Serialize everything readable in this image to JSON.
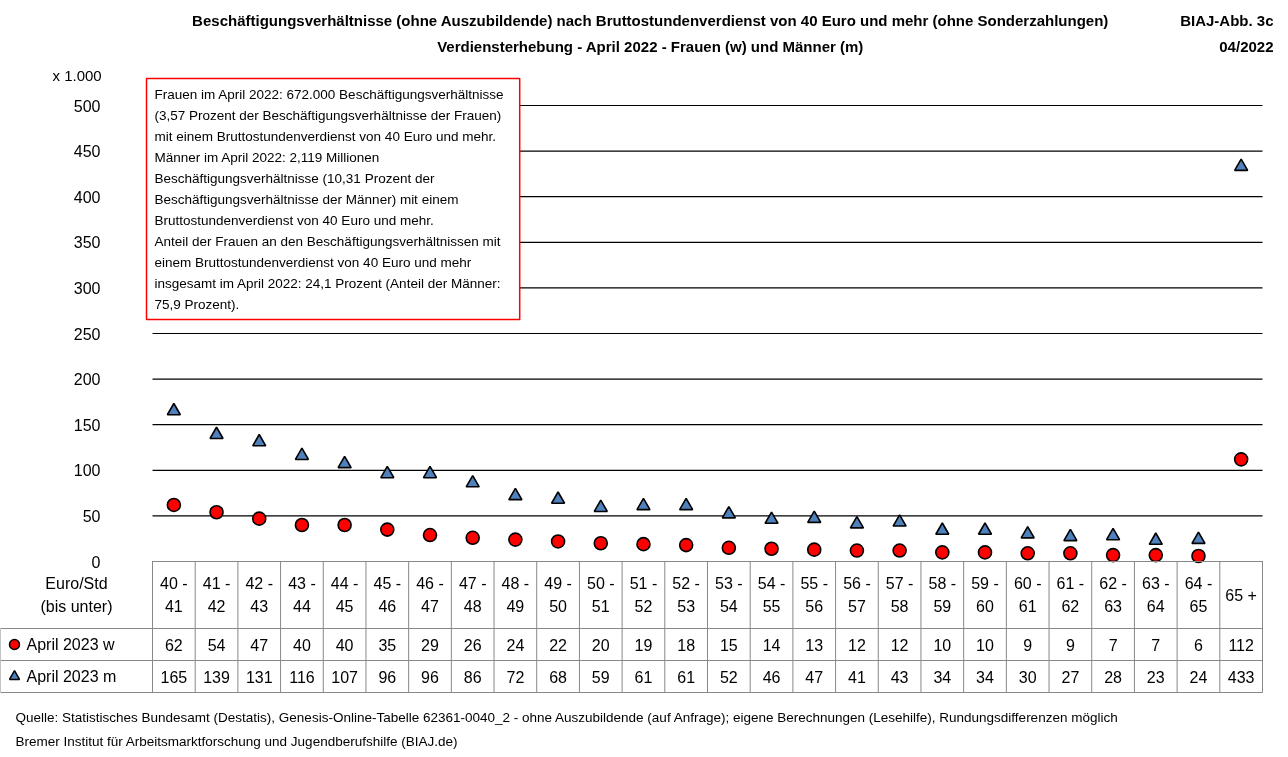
{
  "chart_data": {
    "type": "scatter",
    "title": "Beschäftigungsverhältnisse (ohne Auszubildende) nach Bruttostundenverdienst von 40 Euro und mehr (ohne Sonderzahlungen)",
    "subtitle": "Verdiensterhebung - April 2022 - Frauen (w) und Männer (m)",
    "ylabel": "x 1.000",
    "xlabel": "Euro/Std (bis unter)",
    "categories": [
      "40 - 41",
      "41 - 42",
      "42 - 43",
      "43 - 44",
      "44 - 45",
      "45 - 46",
      "46 - 47",
      "47 - 48",
      "48 - 49",
      "49 - 50",
      "50 - 51",
      "51 - 52",
      "52 - 53",
      "53 - 54",
      "54 - 55",
      "55 - 56",
      "56 - 57",
      "57 - 58",
      "58 - 59",
      "59 - 60",
      "60 - 61",
      "61 - 62",
      "62 - 63",
      "63 - 64",
      "64 - 65",
      "65 +"
    ],
    "series": [
      {
        "name": "April 2023 w",
        "color": "#ff0000",
        "marker": "circle",
        "values": [
          62,
          54,
          47,
          40,
          40,
          35,
          29,
          26,
          24,
          22,
          20,
          19,
          18,
          15,
          14,
          13,
          12,
          12,
          10,
          10,
          9,
          9,
          7,
          7,
          6,
          112
        ]
      },
      {
        "name": "April 2023 m",
        "color": "#4f81bd",
        "marker": "triangle",
        "values": [
          165,
          139,
          131,
          116,
          107,
          96,
          96,
          86,
          72,
          68,
          59,
          61,
          61,
          52,
          46,
          47,
          41,
          43,
          34,
          34,
          30,
          27,
          28,
          23,
          24,
          433
        ]
      }
    ],
    "ylim": [
      0,
      500
    ],
    "yticks": [
      0,
      50,
      100,
      150,
      200,
      250,
      300,
      350,
      400,
      450,
      500
    ],
    "grid": "y",
    "legend": "bottom left",
    "data_labels": true,
    "annotations": [
      "Frauen im April 2022:  672.000  Beschäftigungsverhältnisse (3,57 Prozent der Beschäftigungsverhältnisse der Frauen) mit einem Bruttostundenverdienst von 40 Euro und mehr.",
      "Männer im April 2022:  2,119 Millionen Beschäftigungsverhältnisse (10,31 Prozent der Beschäftigungsverhältnisse der Männer) mit einem Bruttostundenverdienst von 40 Euro und mehr.",
      "Anteil der Frauen an den Beschäftigungsverhältnissen mit einem Bruttostundenverdienst von 40 Euro und mehr insgesamt im April 2022: 24,1 Prozent (Anteil der Männer: 75,9 Prozent).",
      "BIAJ-Abb. 3c",
      "04/2022",
      "Quelle: Statistisches Bundesamt (Destatis), Genesis-Online-Tabelle 62361-0040_2 - ohne Auszubildende (auf Anfrage); eigene Berechnungen (Lesehilfe), Rundungsdifferenzen möglich",
      "Bremer Institut für Arbeitsmarktforschung und Jugendberufshilfe (BIAJ.de)"
    ]
  }
}
